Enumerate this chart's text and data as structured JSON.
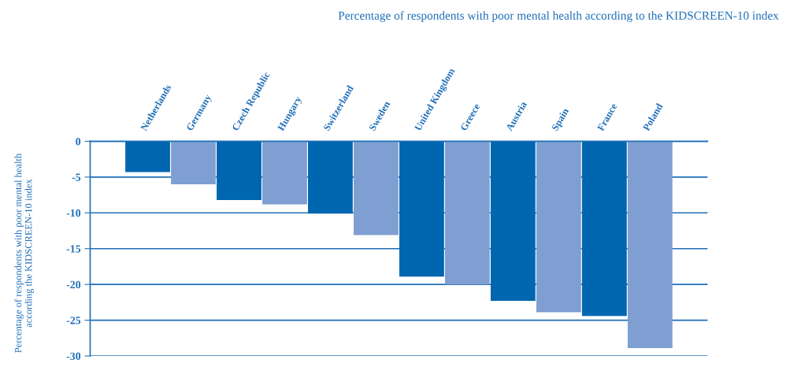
{
  "chart_data": {
    "type": "bar",
    "title": "Percentage of respondents with poor mental health according to the KIDSCREEN-10 index",
    "ylabel": "Percentage of respondents with poor mental health according the KIDSCREEN-10 index",
    "categories": [
      "Netherlands",
      "Germany",
      "Czech Republic",
      "Hungary",
      "Switzerland",
      "Sweden",
      "United Kingdom",
      "Greece",
      "Austria",
      "Spain",
      "France",
      "Poland"
    ],
    "values": [
      -4.3,
      -6.0,
      -8.2,
      -8.8,
      -10.1,
      -13.1,
      -18.9,
      -20.0,
      -22.3,
      -23.9,
      -24.4,
      -28.9
    ],
    "colors": [
      "#0066b0",
      "#7f9fd2",
      "#0066b0",
      "#7f9fd2",
      "#0066b0",
      "#7f9fd2",
      "#0066b0",
      "#7f9fd2",
      "#0066b0",
      "#7f9fd2",
      "#0066b0",
      "#7f9fd2"
    ],
    "ylim": [
      -30,
      0
    ],
    "yticks": [
      -30,
      -25,
      -20,
      -15,
      -10,
      -5,
      0
    ],
    "grid": "y"
  }
}
